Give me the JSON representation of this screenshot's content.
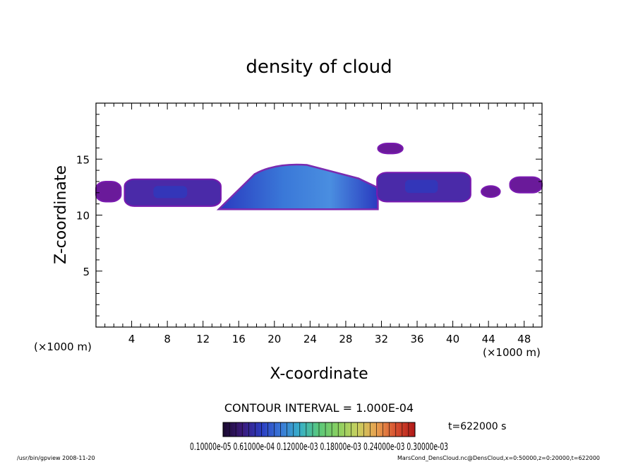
{
  "chart_data": {
    "type": "heatmap",
    "title": "density of cloud",
    "xlabel": "X-coordinate",
    "ylabel": "Z-coordinate",
    "xunit": "(×1000 m)",
    "yunit": "(×1000 m)",
    "xlim": [
      0,
      50
    ],
    "ylim": [
      0,
      20
    ],
    "xticks": [
      4,
      8,
      12,
      16,
      20,
      24,
      28,
      32,
      36,
      40,
      44,
      48
    ],
    "yticks": [
      5,
      10,
      15
    ],
    "contour_interval": "CONTOUR INTERVAL = 1.000E-04",
    "time": "t=622000 s",
    "colorbar_labels": "0.10000e-05 0.61000e-04 0.12000e-03 0.18000e-03 0.24000e-03 0.30000e-03",
    "colorbar_colors": [
      "#1a0a2e",
      "#3b1a7a",
      "#2a3cc0",
      "#3a78d8",
      "#38b0c8",
      "#5ac87a",
      "#8ad060",
      "#c8d060",
      "#e8a050",
      "#d85030",
      "#b01818"
    ],
    "cloud_regions": [
      {
        "z_range": [
          11.2,
          13.0
        ],
        "x_range": [
          0.0,
          2.8
        ],
        "level": 1
      },
      {
        "z_range": [
          10.8,
          13.2
        ],
        "x_range": [
          3.2,
          14.0
        ],
        "level": 2
      },
      {
        "z_range": [
          10.6,
          14.6
        ],
        "x_range": [
          14.0,
          31.5
        ],
        "level": 4
      },
      {
        "z_range": [
          11.2,
          13.8
        ],
        "x_range": [
          31.5,
          42.0
        ],
        "level": 2
      },
      {
        "z_range": [
          15.5,
          16.4
        ],
        "x_range": [
          31.6,
          34.4
        ],
        "level": 1
      },
      {
        "z_range": [
          11.6,
          12.6
        ],
        "x_range": [
          43.2,
          45.3
        ],
        "level": 1
      },
      {
        "z_range": [
          12.0,
          13.4
        ],
        "x_range": [
          46.4,
          50.0
        ],
        "level": 1
      }
    ],
    "grid": false,
    "legend": "bottom"
  },
  "footer": {
    "left": "/usr/bin/gpview   2008-11-20",
    "right": "MarsCond_DensCloud.nc@DensCloud,x=0:50000,z=0:20000,t=622000"
  }
}
